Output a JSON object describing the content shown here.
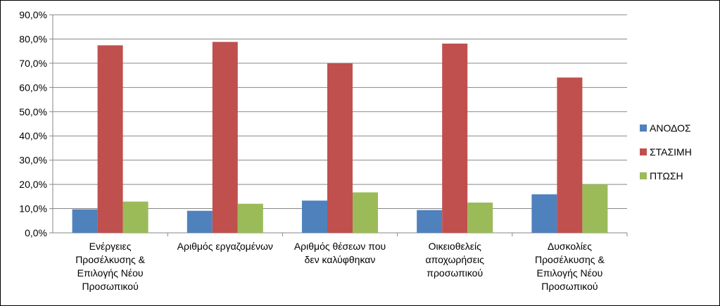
{
  "chart_data": {
    "type": "bar",
    "title": "",
    "xlabel": "",
    "ylabel": "",
    "ylim": [
      0,
      90
    ],
    "yticks": [
      "0,0%",
      "10,0%",
      "20,0%",
      "30,0%",
      "40,0%",
      "50,0%",
      "60,0%",
      "70,0%",
      "80,0%",
      "90,0%"
    ],
    "grid": true,
    "legend_position": "right",
    "categories": [
      [
        "Ενέργειες",
        "Προσέλκυσης &",
        "Επιλογής Νέου",
        "Προσωπικού"
      ],
      [
        "Αριθμός εργαζομένων"
      ],
      [
        "Αριθμός θέσεων που",
        "δεν καλύφθηκαν"
      ],
      [
        "Οικειοθελείς",
        "αποχωρήσεις",
        "προσωπικού"
      ],
      [
        "Δυσκολίες",
        "Προσέλκυσης &",
        "Επιλογής Νέου",
        "Προσωπικού"
      ]
    ],
    "series": [
      {
        "name": "ΑΝΟΔΟΣ",
        "color": "#4f81bd",
        "values": [
          9.7,
          9.1,
          13.3,
          9.4,
          15.9
        ]
      },
      {
        "name": "ΣΤΑΣΙΜΗ",
        "color": "#c0504d",
        "values": [
          77.4,
          78.8,
          70.0,
          78.1,
          64.1
        ]
      },
      {
        "name": "ΠΤΩΣΗ",
        "color": "#9bbb59",
        "values": [
          12.9,
          12.0,
          16.7,
          12.5,
          20.0
        ]
      }
    ]
  }
}
